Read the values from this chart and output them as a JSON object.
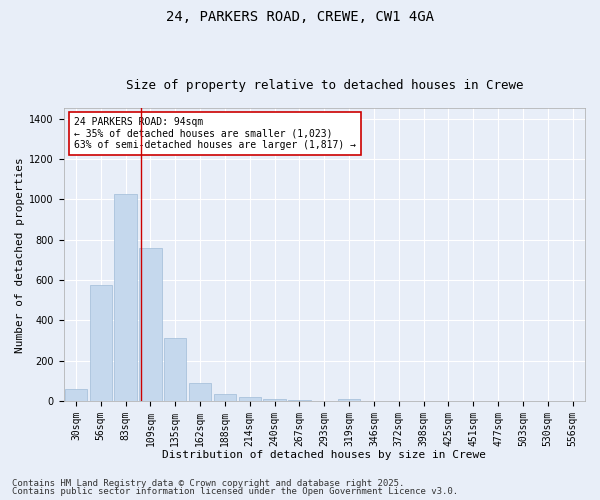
{
  "title_line1": "24, PARKERS ROAD, CREWE, CW1 4GA",
  "title_line2": "Size of property relative to detached houses in Crewe",
  "xlabel": "Distribution of detached houses by size in Crewe",
  "ylabel": "Number of detached properties",
  "bar_color": "#c5d8ed",
  "bar_edge_color": "#a0bcd8",
  "background_color": "#e8eef8",
  "plot_bg_color": "#e8eef8",
  "grid_color": "#ffffff",
  "categories": [
    "30sqm",
    "56sqm",
    "83sqm",
    "109sqm",
    "135sqm",
    "162sqm",
    "188sqm",
    "214sqm",
    "240sqm",
    "267sqm",
    "293sqm",
    "319sqm",
    "346sqm",
    "372sqm",
    "398sqm",
    "425sqm",
    "451sqm",
    "477sqm",
    "503sqm",
    "530sqm",
    "556sqm"
  ],
  "values": [
    60,
    575,
    1025,
    760,
    310,
    90,
    35,
    20,
    10,
    5,
    0,
    10,
    0,
    0,
    0,
    0,
    0,
    0,
    0,
    0,
    0
  ],
  "ylim": [
    0,
    1450
  ],
  "yticks": [
    0,
    200,
    400,
    600,
    800,
    1000,
    1200,
    1400
  ],
  "red_line_x": 2.62,
  "annotation_title": "24 PARKERS ROAD: 94sqm",
  "annotation_line1": "← 35% of detached houses are smaller (1,023)",
  "annotation_line2": "63% of semi-detached houses are larger (1,817) →",
  "annotation_box_color": "#ffffff",
  "annotation_box_edge": "#cc0000",
  "red_line_color": "#cc0000",
  "footer_line1": "Contains HM Land Registry data © Crown copyright and database right 2025.",
  "footer_line2": "Contains public sector information licensed under the Open Government Licence v3.0.",
  "title_fontsize": 10,
  "subtitle_fontsize": 9,
  "axis_label_fontsize": 8,
  "tick_fontsize": 7,
  "annotation_fontsize": 7,
  "footer_fontsize": 6.5
}
